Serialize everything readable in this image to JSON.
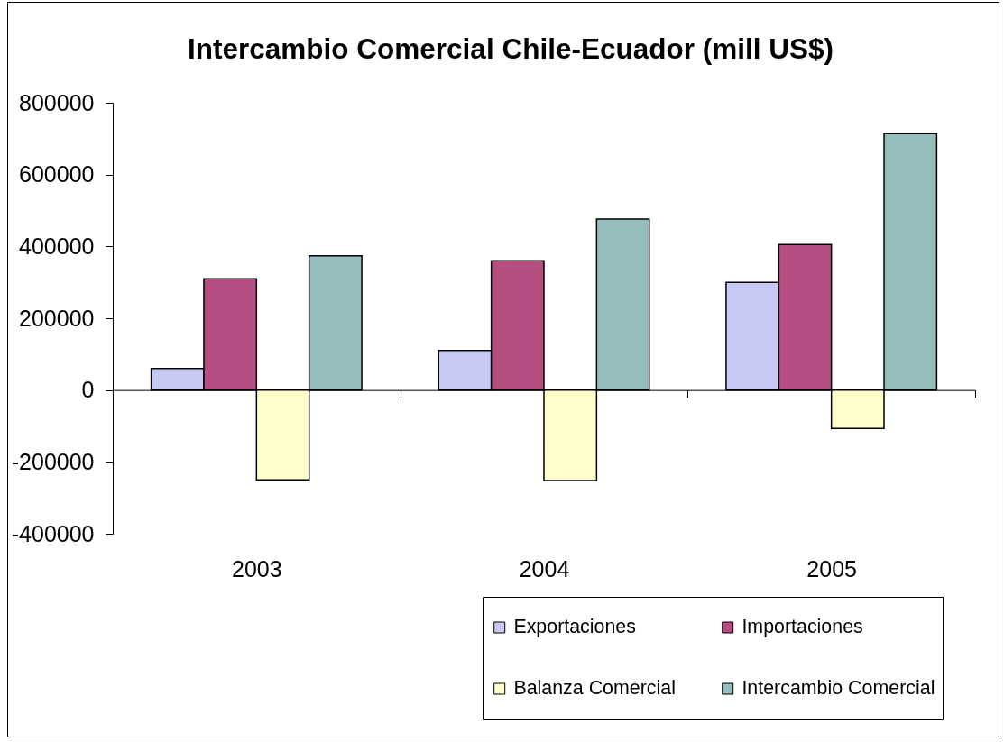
{
  "chart_data": {
    "type": "bar",
    "title": "Intercambio Comercial Chile-Ecuador (mill US$)",
    "categories": [
      "2003",
      "2004",
      "2005"
    ],
    "series": [
      {
        "name": "Exportaciones",
        "color": "#c9c9f5",
        "values": [
          60000,
          110000,
          300000
        ]
      },
      {
        "name": "Importaciones",
        "color": "#b44d80",
        "values": [
          310000,
          360000,
          405000
        ]
      },
      {
        "name": "Balanza Comercial",
        "color": "#ffffcc",
        "values": [
          -250000,
          -252000,
          -107000
        ]
      },
      {
        "name": "Intercambio Comercial",
        "color": "#94bdbb",
        "values": [
          374000,
          476000,
          714000
        ]
      }
    ],
    "ylim": [
      -400000,
      800000
    ],
    "yticks": [
      -400000,
      -200000,
      0,
      200000,
      400000,
      600000,
      800000
    ],
    "legend": "bottom right"
  }
}
